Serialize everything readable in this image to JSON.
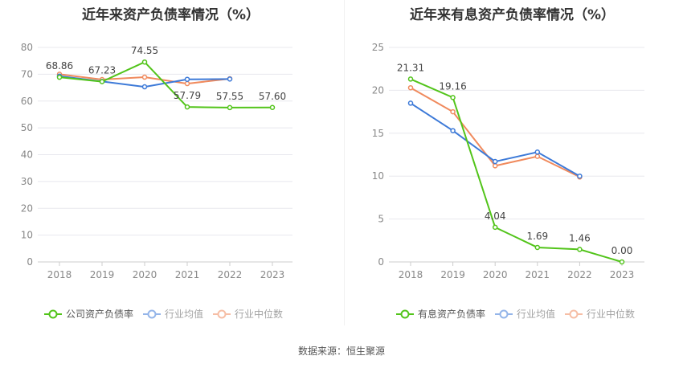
{
  "charts": [
    {
      "title": "近年来资产负债率情况（%）",
      "categories": [
        "2018",
        "2019",
        "2020",
        "2021",
        "2022",
        "2023"
      ],
      "yTicks": [
        0,
        10,
        20,
        30,
        40,
        50,
        60,
        70,
        80
      ],
      "ylim": [
        0,
        80
      ],
      "legend": [
        "公司资产负债率",
        "行业均值",
        "行业中位数"
      ],
      "series": [
        {
          "name": "公司资产负债率",
          "color": "#52c41a",
          "values": [
            68.86,
            67.23,
            74.55,
            57.79,
            57.55,
            57.6
          ],
          "labels": [
            "68.86",
            "67.23",
            "74.55",
            "57.79",
            "57.55",
            "57.60"
          ]
        },
        {
          "name": "行业均值",
          "color": "#3d7ad8",
          "values": [
            69.3,
            67.3,
            65.3,
            68.1,
            68.2,
            null
          ]
        },
        {
          "name": "行业中位数",
          "color": "#f08a5d",
          "values": [
            70.0,
            68.0,
            68.9,
            66.5,
            68.3,
            null
          ]
        }
      ]
    },
    {
      "title": "近年来有息资产负债率情况（%）",
      "categories": [
        "2018",
        "2019",
        "2020",
        "2021",
        "2022",
        "2023"
      ],
      "yTicks": [
        0,
        5,
        10,
        15,
        20,
        25
      ],
      "ylim": [
        0,
        25
      ],
      "legend": [
        "有息资产负债率",
        "行业均值",
        "行业中位数"
      ],
      "series": [
        {
          "name": "有息资产负债率",
          "color": "#52c41a",
          "values": [
            21.31,
            19.16,
            4.04,
            1.69,
            1.46,
            0.0
          ],
          "labels": [
            "21.31",
            "19.16",
            "4.04",
            "1.69",
            "1.46",
            "0.00"
          ]
        },
        {
          "name": "行业均值",
          "color": "#3d7ad8",
          "values": [
            18.5,
            15.3,
            11.7,
            12.8,
            10.0,
            null
          ]
        },
        {
          "name": "行业中位数",
          "color": "#f08a5d",
          "values": [
            20.3,
            17.5,
            11.2,
            12.3,
            9.9,
            null
          ]
        }
      ]
    }
  ],
  "chart_data": [
    {
      "type": "line",
      "title": "近年来资产负债率情况（%）",
      "categories": [
        "2018",
        "2019",
        "2020",
        "2021",
        "2022",
        "2023"
      ],
      "ylim": [
        0,
        80
      ],
      "series": [
        {
          "name": "公司资产负债率",
          "values": [
            68.86,
            67.23,
            74.55,
            57.79,
            57.55,
            57.6
          ]
        },
        {
          "name": "行业均值",
          "values": [
            69.3,
            67.3,
            65.3,
            68.1,
            68.2,
            null
          ]
        },
        {
          "name": "行业中位数",
          "values": [
            70.0,
            68.0,
            68.9,
            66.5,
            68.3,
            null
          ]
        }
      ]
    },
    {
      "type": "line",
      "title": "近年来有息资产负债率情况（%）",
      "categories": [
        "2018",
        "2019",
        "2020",
        "2021",
        "2022",
        "2023"
      ],
      "ylim": [
        0,
        25
      ],
      "series": [
        {
          "name": "有息资产负债率",
          "values": [
            21.31,
            19.16,
            4.04,
            1.69,
            1.46,
            0.0
          ]
        },
        {
          "name": "行业均值",
          "values": [
            18.5,
            15.3,
            11.7,
            12.8,
            10.0,
            null
          ]
        },
        {
          "name": "行业中位数",
          "values": [
            20.3,
            17.5,
            11.2,
            12.3,
            9.9,
            null
          ]
        }
      ]
    }
  ],
  "source": "数据来源：恒生聚源"
}
